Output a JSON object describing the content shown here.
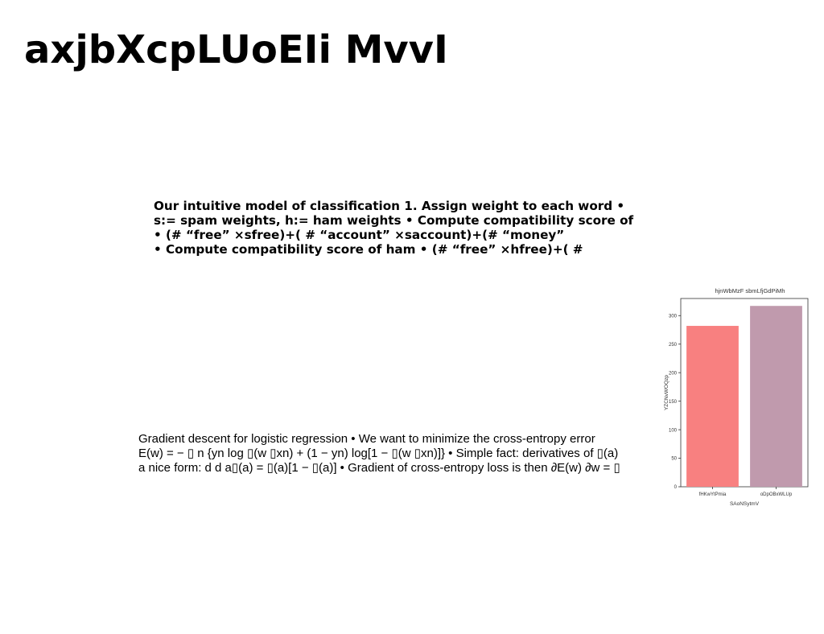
{
  "slide": {
    "title": "axjbXcpLUoEIi MvvI",
    "block1_lines": [
      "Our intuitive model of classification 1. Assign weight to each word •",
      "s:= spam weights, h:= ham weights • Compute compatibility score of",
      "• (# “free” ×sfree)+( # “account” ×saccount)+(# “money”",
      "• Compute compatibility score of ham • (# “free” ×hfree)+( #"
    ],
    "block2_lines": [
      "Gradient descent for logistic regression • We want to minimize the cross-entropy error",
      "E(w) = − ▯ n {yn log ▯(w ▯xn) + (1 − yn) log[1 − ▯(w ▯xn)]} • Simple fact: derivatives of ▯(a)",
      "a nice form: d d a▯(a) = ▯(a)[1 − ▯(a)] • Gradient of cross-entropy loss is then ∂E(w) ∂w = ▯"
    ]
  },
  "chart_data": {
    "type": "bar",
    "title": "hjnWbMzF sbmLfjGdPiMh",
    "xlabel": "SAoNSytmV",
    "ylabel": "YZCNvWOQzp",
    "categories": [
      "fHKwYtPmia",
      "oDpOBxWLUp"
    ],
    "values": [
      282,
      317
    ],
    "colors": [
      "#f88080",
      "#c09aad"
    ],
    "ylim": [
      0,
      330
    ],
    "yticks": [
      0,
      50,
      100,
      150,
      200,
      250,
      300
    ],
    "grid": false
  }
}
